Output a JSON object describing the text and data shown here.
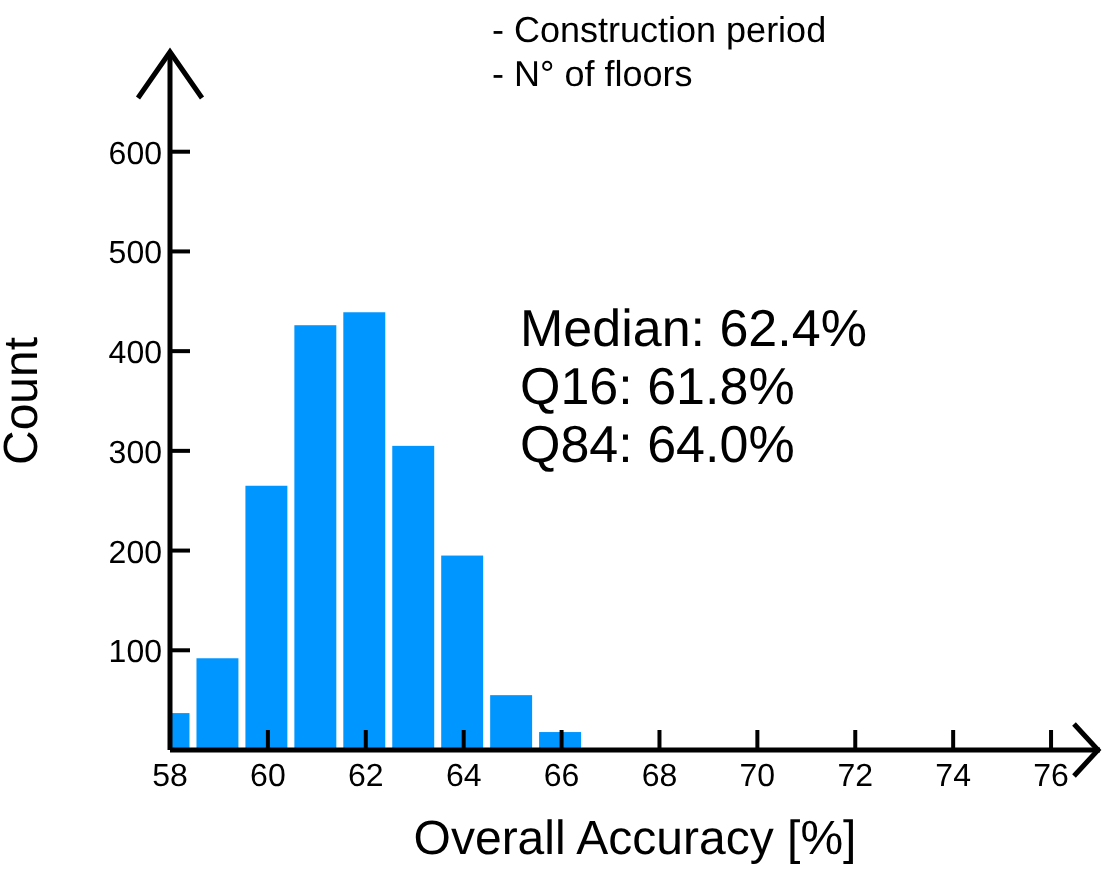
{
  "chart_data": {
    "type": "histogram",
    "xlabel": "Overall Accuracy [%]",
    "ylabel": "Count",
    "bins": [
      58,
      58.5,
      59.5,
      60.5,
      61.5,
      62.5,
      63.5,
      64.5,
      65.5,
      66.5
    ],
    "values": [
      37,
      92,
      265,
      426,
      439,
      305,
      195,
      55,
      18
    ],
    "color": "#0096ff",
    "xlim": [
      58,
      77
    ],
    "xticks": [
      58,
      60,
      62,
      64,
      66,
      68,
      70,
      72,
      74,
      76
    ],
    "ylim": [
      0,
      700
    ],
    "yticks": [
      100,
      200,
      300,
      400,
      500,
      600
    ],
    "annotations": [
      "- Construction period",
      "- N° of floors",
      "Median: 62.4%",
      "Q16: 61.8%",
      "Q84: 64.0%"
    ]
  }
}
